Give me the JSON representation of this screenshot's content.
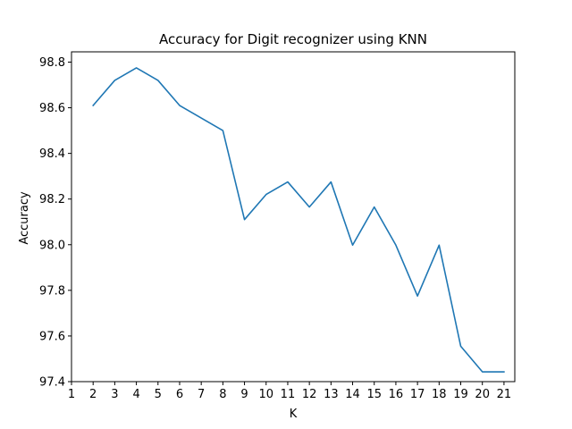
{
  "chart_data": {
    "type": "line",
    "title": "Accuracy for Digit recognizer using KNN",
    "xlabel": "K",
    "ylabel": "Accuracy",
    "xlim": [
      1,
      21.5
    ],
    "ylim": [
      97.4,
      98.845
    ],
    "xticks": [
      1,
      2,
      3,
      4,
      5,
      6,
      7,
      8,
      9,
      10,
      11,
      12,
      13,
      14,
      15,
      16,
      17,
      18,
      19,
      20,
      21
    ],
    "yticks": [
      97.4,
      97.6,
      97.8,
      98.0,
      98.2,
      98.4,
      98.6,
      98.8
    ],
    "ytick_labels": [
      "97.4",
      "97.6",
      "97.8",
      "98.0",
      "98.2",
      "98.4",
      "98.6",
      "98.8"
    ],
    "grid": false,
    "line_color": "#1f77b4",
    "series": [
      {
        "x": [
          2,
          3,
          4,
          5,
          6,
          7,
          8,
          9,
          10,
          11,
          12,
          13,
          14,
          15,
          16,
          17,
          18,
          19,
          20,
          21
        ],
        "values": [
          98.61,
          98.72,
          98.775,
          98.72,
          98.61,
          98.555,
          98.5,
          98.11,
          98.22,
          98.275,
          98.165,
          98.275,
          97.998,
          98.165,
          97.998,
          97.775,
          97.998,
          97.555,
          97.443,
          97.443
        ]
      }
    ]
  }
}
